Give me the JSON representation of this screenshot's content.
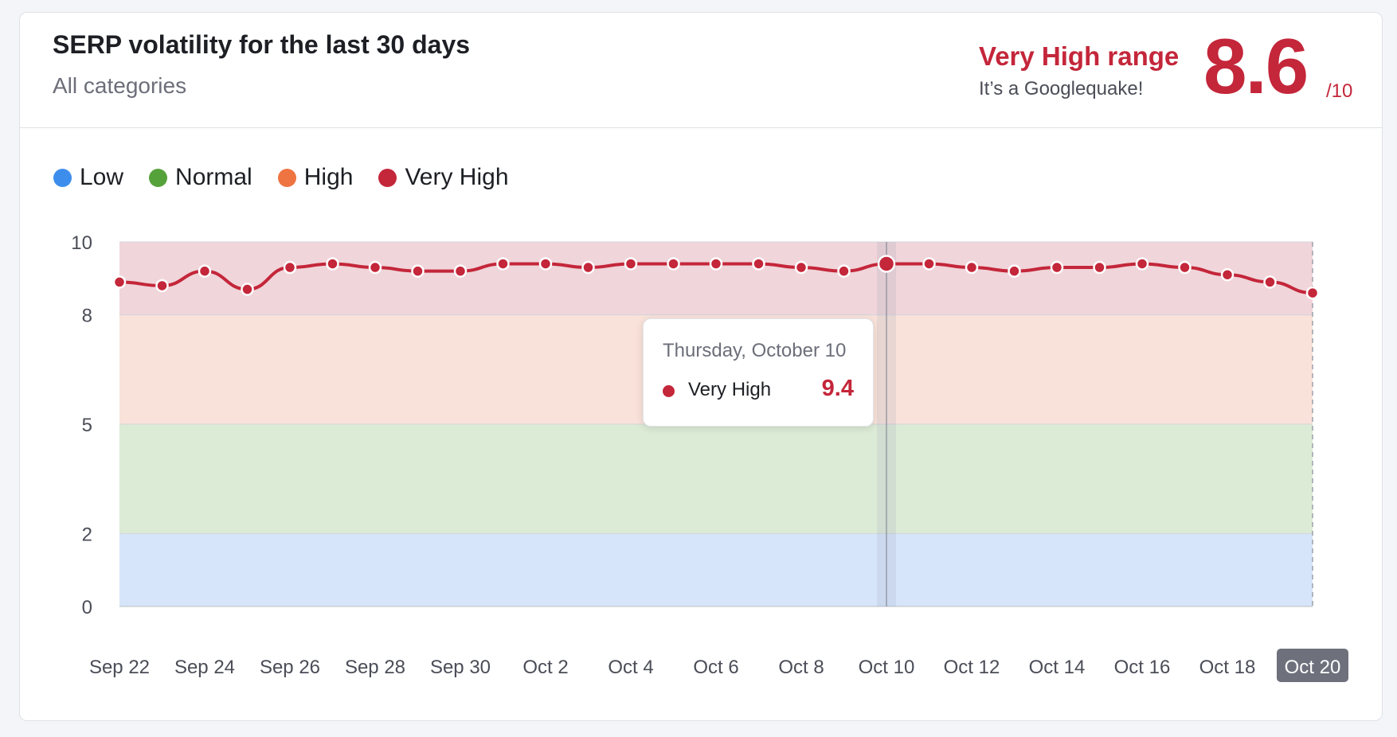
{
  "header": {
    "title": "SERP volatility for the last 30 days",
    "subtitle": "All categories",
    "range_label": "Very High range",
    "range_note": "It’s a Googlequake!",
    "score": "8.6",
    "score_max": "/10"
  },
  "legend": [
    {
      "label": "Low",
      "color": "#3d8ded"
    },
    {
      "label": "Normal",
      "color": "#55a23b"
    },
    {
      "label": "High",
      "color": "#ee7441"
    },
    {
      "label": "Very High",
      "color": "#c4263a"
    }
  ],
  "tooltip": {
    "date": "Thursday, October 10",
    "series": "Very High",
    "value": "9.4",
    "color": "#c4263a"
  },
  "chart_data": {
    "type": "line",
    "title": "SERP volatility for the last 30 days",
    "ylim": [
      0,
      10
    ],
    "yticks": [
      0,
      2,
      5,
      8,
      10
    ],
    "bands": [
      {
        "name": "Low",
        "from": 0,
        "to": 2,
        "color": "#d6e5f9"
      },
      {
        "name": "Normal",
        "from": 2,
        "to": 5,
        "color": "#dcebd6"
      },
      {
        "name": "High",
        "from": 5,
        "to": 8,
        "color": "#f9e2d9"
      },
      {
        "name": "Very High",
        "from": 8,
        "to": 10,
        "color": "#f0d5da"
      }
    ],
    "x": [
      "Sep 22",
      "Sep 23",
      "Sep 24",
      "Sep 25",
      "Sep 26",
      "Sep 27",
      "Sep 28",
      "Sep 29",
      "Sep 30",
      "Oct 1",
      "Oct 2",
      "Oct 3",
      "Oct 4",
      "Oct 5",
      "Oct 6",
      "Oct 7",
      "Oct 8",
      "Oct 9",
      "Oct 10",
      "Oct 11",
      "Oct 12",
      "Oct 13",
      "Oct 14",
      "Oct 15",
      "Oct 16",
      "Oct 17",
      "Oct 18",
      "Oct 19",
      "Oct 20"
    ],
    "xtick_labels": [
      "Sep 22",
      "Sep 24",
      "Sep 26",
      "Sep 28",
      "Sep 30",
      "Oct 2",
      "Oct 4",
      "Oct 6",
      "Oct 8",
      "Oct 10",
      "Oct 12",
      "Oct 14",
      "Oct 16",
      "Oct 18",
      "Oct 20"
    ],
    "series": [
      {
        "name": "Very High",
        "color": "#c4263a",
        "values": [
          8.9,
          8.8,
          9.2,
          8.7,
          9.3,
          9.4,
          9.3,
          9.2,
          9.2,
          9.4,
          9.4,
          9.3,
          9.4,
          9.4,
          9.4,
          9.4,
          9.3,
          9.2,
          9.4,
          9.4,
          9.3,
          9.2,
          9.3,
          9.3,
          9.4,
          9.3,
          9.1,
          8.9,
          8.6
        ]
      }
    ],
    "highlight_index": 18,
    "highlight_tick": "Oct 20"
  }
}
